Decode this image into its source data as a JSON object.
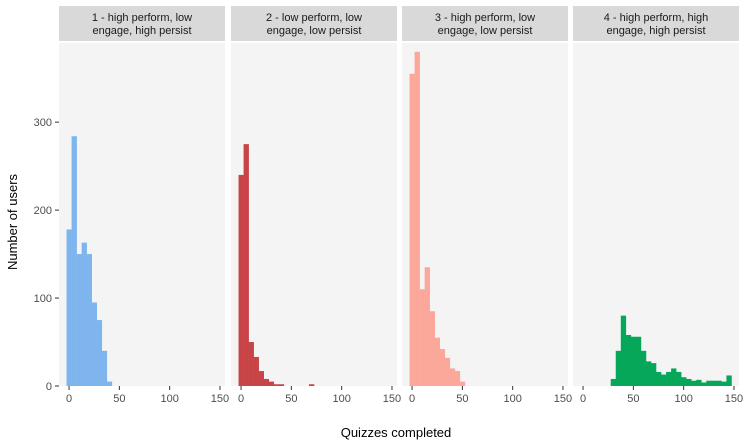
{
  "chart_data": {
    "type": "bar",
    "xlabel": "Quizzes completed",
    "ylabel": "Number of users",
    "xlim": [
      -10,
      155
    ],
    "ylim": [
      0,
      390
    ],
    "x_ticks": [
      0,
      50,
      100,
      150
    ],
    "y_ticks": [
      0,
      100,
      200,
      300
    ],
    "bin_width": 5,
    "panel_background": "#f4f4f4",
    "strip_background": "#d9d9d9",
    "grid": false,
    "legend": "none",
    "panels": [
      {
        "label_lines": [
          "1 - high perform, low",
          "engage, high persist"
        ],
        "color": "#7fb5ee",
        "bins": [
          {
            "x": 0,
            "count": 178
          },
          {
            "x": 5,
            "count": 284
          },
          {
            "x": 10,
            "count": 150
          },
          {
            "x": 15,
            "count": 163
          },
          {
            "x": 20,
            "count": 150
          },
          {
            "x": 25,
            "count": 95
          },
          {
            "x": 30,
            "count": 75
          },
          {
            "x": 35,
            "count": 40
          },
          {
            "x": 40,
            "count": 5
          }
        ]
      },
      {
        "label_lines": [
          "2 - low perform, low",
          "engage, low persist"
        ],
        "color": "#c84447",
        "bins": [
          {
            "x": 0,
            "count": 240
          },
          {
            "x": 5,
            "count": 275
          },
          {
            "x": 10,
            "count": 50
          },
          {
            "x": 15,
            "count": 33
          },
          {
            "x": 20,
            "count": 17
          },
          {
            "x": 25,
            "count": 8
          },
          {
            "x": 30,
            "count": 5
          },
          {
            "x": 35,
            "count": 2
          },
          {
            "x": 40,
            "count": 2
          },
          {
            "x": 70,
            "count": 2
          }
        ]
      },
      {
        "label_lines": [
          "3 - high perform, low",
          "engage, low persist"
        ],
        "color": "#fba89b",
        "bins": [
          {
            "x": 0,
            "count": 355
          },
          {
            "x": 5,
            "count": 380
          },
          {
            "x": 10,
            "count": 110
          },
          {
            "x": 15,
            "count": 135
          },
          {
            "x": 20,
            "count": 85
          },
          {
            "x": 25,
            "count": 55
          },
          {
            "x": 30,
            "count": 42
          },
          {
            "x": 35,
            "count": 32
          },
          {
            "x": 40,
            "count": 20
          },
          {
            "x": 45,
            "count": 17
          },
          {
            "x": 50,
            "count": 5
          }
        ]
      },
      {
        "label_lines": [
          "4 - high perform, high",
          "engage, high persist"
        ],
        "color": "#07a75a",
        "bins": [
          {
            "x": 30,
            "count": 8
          },
          {
            "x": 35,
            "count": 40
          },
          {
            "x": 40,
            "count": 80
          },
          {
            "x": 45,
            "count": 58
          },
          {
            "x": 50,
            "count": 56
          },
          {
            "x": 55,
            "count": 56
          },
          {
            "x": 60,
            "count": 40
          },
          {
            "x": 65,
            "count": 28
          },
          {
            "x": 70,
            "count": 26
          },
          {
            "x": 75,
            "count": 16
          },
          {
            "x": 80,
            "count": 13
          },
          {
            "x": 85,
            "count": 16
          },
          {
            "x": 90,
            "count": 20
          },
          {
            "x": 95,
            "count": 16
          },
          {
            "x": 100,
            "count": 10
          },
          {
            "x": 105,
            "count": 8
          },
          {
            "x": 110,
            "count": 6
          },
          {
            "x": 115,
            "count": 7
          },
          {
            "x": 120,
            "count": 4
          },
          {
            "x": 125,
            "count": 6
          },
          {
            "x": 130,
            "count": 6
          },
          {
            "x": 135,
            "count": 6
          },
          {
            "x": 140,
            "count": 5
          },
          {
            "x": 145,
            "count": 12
          }
        ]
      }
    ]
  }
}
